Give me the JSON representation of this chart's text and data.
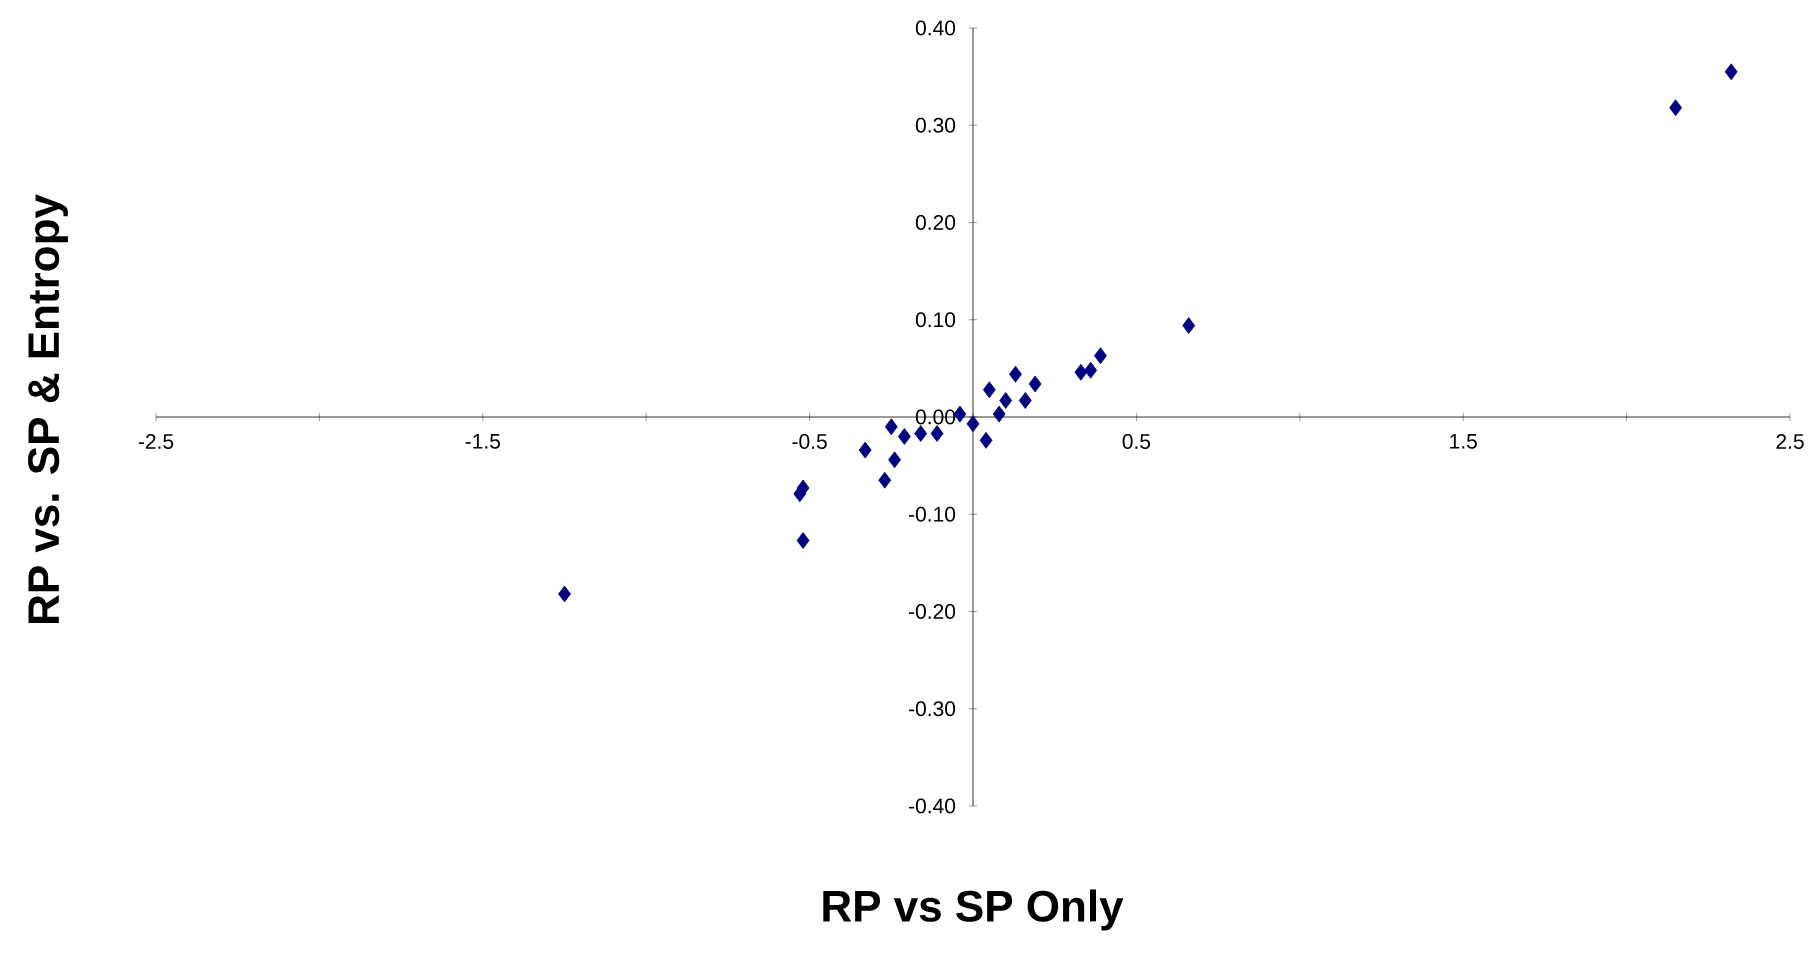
{
  "chart_data": {
    "type": "scatter",
    "xlabel": "RP vs SP Only",
    "ylabel": "RP vs. SP & Entropy",
    "x": [
      2.32,
      2.15,
      0.66,
      0.39,
      0.36,
      0.33,
      -1.25,
      -0.53,
      -0.52,
      -0.52,
      -0.33,
      -0.27,
      -0.24,
      -0.25,
      -0.21,
      -0.16,
      -0.11,
      -0.04,
      0.0,
      0.04,
      0.05,
      0.1,
      0.13,
      0.16,
      0.08,
      0.19
    ],
    "values": [
      0.355,
      0.318,
      0.094,
      0.063,
      0.048,
      0.046,
      -0.182,
      -0.079,
      -0.073,
      -0.127,
      -0.034,
      -0.065,
      -0.044,
      -0.01,
      -0.02,
      -0.017,
      -0.017,
      0.003,
      -0.007,
      -0.024,
      0.028,
      0.017,
      0.044,
      0.017,
      0.003,
      0.034
    ],
    "color": "#000080",
    "marker": "diamond",
    "xlim": [
      -2.5,
      2.5
    ],
    "ylim": [
      -0.4,
      0.4
    ],
    "xticks": [
      {
        "value": -2.5,
        "label": "-2.5"
      },
      {
        "value": -2,
        "label": null
      },
      {
        "value": -1.5,
        "label": "-1.5"
      },
      {
        "value": -1,
        "label": null
      },
      {
        "value": -0.5,
        "label": "-0.5"
      },
      {
        "value": 0,
        "label": null
      },
      {
        "value": 0.5,
        "label": "0.5"
      },
      {
        "value": 1,
        "label": null
      },
      {
        "value": 1.5,
        "label": "1.5"
      },
      {
        "value": 2,
        "label": null
      },
      {
        "value": 2.5,
        "label": "2.5"
      }
    ],
    "yticks": [
      {
        "value": -0.4,
        "label": "-0.40"
      },
      {
        "value": -0.3,
        "label": "-0.30"
      },
      {
        "value": -0.2,
        "label": "-0.20"
      },
      {
        "value": -0.1,
        "label": "-0.10"
      },
      {
        "value": 0,
        "label": "0.00"
      },
      {
        "value": 0.1,
        "label": "0.10"
      },
      {
        "value": 0.2,
        "label": "0.20"
      },
      {
        "value": 0.3,
        "label": "0.30"
      },
      {
        "value": 0.4,
        "label": "0.40"
      }
    ]
  }
}
